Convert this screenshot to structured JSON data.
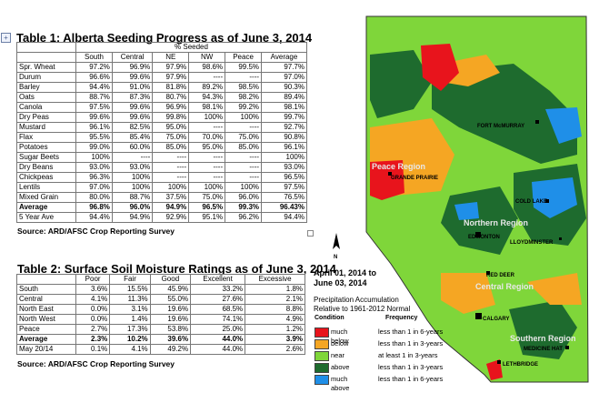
{
  "table1": {
    "title": "Table 1: Alberta Seeding Progress as of June 3, 2014",
    "group_header": "% Seeded",
    "columns": [
      "",
      "South",
      "Central",
      "NE",
      "NW",
      "Peace",
      "Average"
    ],
    "rows": [
      [
        "Spr. Wheat",
        "97.2%",
        "96.9%",
        "97.9%",
        "98.6%",
        "99.5%",
        "97.7%"
      ],
      [
        "Durum",
        "96.6%",
        "99.6%",
        "97.9%",
        "----",
        "----",
        "97.0%"
      ],
      [
        "Barley",
        "94.4%",
        "91.0%",
        "81.8%",
        "89.2%",
        "98.5%",
        "90.3%"
      ],
      [
        "Oats",
        "88.7%",
        "87.3%",
        "80.7%",
        "94.3%",
        "98.2%",
        "89.4%"
      ],
      [
        "Canola",
        "97.5%",
        "99.6%",
        "96.9%",
        "98.1%",
        "99.2%",
        "98.1%"
      ],
      [
        "Dry Peas",
        "99.6%",
        "99.6%",
        "99.8%",
        "100%",
        "100%",
        "99.7%"
      ],
      [
        "Mustard",
        "96.1%",
        "82.5%",
        "95.0%",
        "----",
        "----",
        "92.7%"
      ],
      [
        "Flax",
        "95.5%",
        "85.4%",
        "75.0%",
        "70.0%",
        "75.0%",
        "90.8%"
      ],
      [
        "Potatoes",
        "99.0%",
        "60.0%",
        "85.0%",
        "95.0%",
        "85.0%",
        "96.1%"
      ],
      [
        "Sugar Beets",
        "100%",
        "----",
        "----",
        "----",
        "----",
        "100%"
      ],
      [
        "Dry Beans",
        "93.0%",
        "93.0%",
        "----",
        "----",
        "----",
        "93.0%"
      ],
      [
        "Chickpeas",
        "96.3%",
        "100%",
        "----",
        "----",
        "----",
        "96.5%"
      ],
      [
        "Lentils",
        "97.0%",
        "100%",
        "100%",
        "100%",
        "100%",
        "97.5%"
      ],
      [
        "Mixed Grain",
        "80.0%",
        "88.7%",
        "37.5%",
        "75.0%",
        "96.0%",
        "76.5%"
      ]
    ],
    "average_row": [
      "Average",
      "96.8%",
      "96.0%",
      "94.9%",
      "96.5%",
      "99.3%",
      "96.43%"
    ],
    "five_year_row": [
      "5 Year Ave",
      "94.4%",
      "94.9%",
      "92.9%",
      "95.1%",
      "96.2%",
      "94.4%"
    ],
    "source": "Source: ARD/AFSC Crop Reporting Survey"
  },
  "table2": {
    "title": "Table 2: Surface Soil Moisture Ratings as of June 3, 2014",
    "columns": [
      "",
      "Poor",
      "Fair",
      "Good",
      "Excellent",
      "Excessive"
    ],
    "rows": [
      [
        "South",
        "3.6%",
        "15.5%",
        "45.9%",
        "33.2%",
        "1.8%"
      ],
      [
        "Central",
        "4.1%",
        "11.3%",
        "55.0%",
        "27.6%",
        "2.1%"
      ],
      [
        "North East",
        "0.0%",
        "3.1%",
        "19.6%",
        "68.5%",
        "8.8%"
      ],
      [
        "North West",
        "0.0%",
        "1.4%",
        "19.6%",
        "74.1%",
        "4.9%"
      ],
      [
        "Peace",
        "2.7%",
        "17.3%",
        "53.8%",
        "25.0%",
        "1.2%"
      ]
    ],
    "average_row": [
      "Average",
      "2.3%",
      "10.2%",
      "39.6%",
      "44.0%",
      "3.9%"
    ],
    "prev_row": [
      "May 20/14",
      "0.1%",
      "4.1%",
      "49.2%",
      "44.0%",
      "2.6%"
    ],
    "source": "Source: ARD/AFSC Crop Reporting Survey"
  },
  "map": {
    "date_title": "April 01, 2014 to\nJune 03, 2014",
    "subtitle": "Precipitation Accumulation\nRelative to 1961-2012 Normal",
    "regions": [
      "Peace Region",
      "Northern Region",
      "Central Region",
      "Southern Region"
    ],
    "cities": [
      "FORT McMURRAY",
      "GRANDE PRAIRIE",
      "COLD LAKE",
      "EDMONTON",
      "LLOYDMINSTER",
      "RED DEER",
      "CALGARY",
      "MEDICINE HAT",
      "LETHBRIDGE"
    ],
    "legend": {
      "condition_header": "Condition",
      "frequency_header": "Frequency",
      "items": [
        {
          "label": "much below",
          "frequency": "less than 1 in 6-years",
          "color": "#e8141c"
        },
        {
          "label": "below",
          "frequency": "less than 1 in 3-years",
          "color": "#f5a623"
        },
        {
          "label": "near",
          "frequency": "at least 1 in 3-years",
          "color": "#7fd63a"
        },
        {
          "label": "above",
          "frequency": "less than 1 in 3-years",
          "color": "#1e6b2e"
        },
        {
          "label": "much above",
          "frequency": "less than 1 in 6-years",
          "color": "#1f8fe8"
        }
      ]
    }
  }
}
